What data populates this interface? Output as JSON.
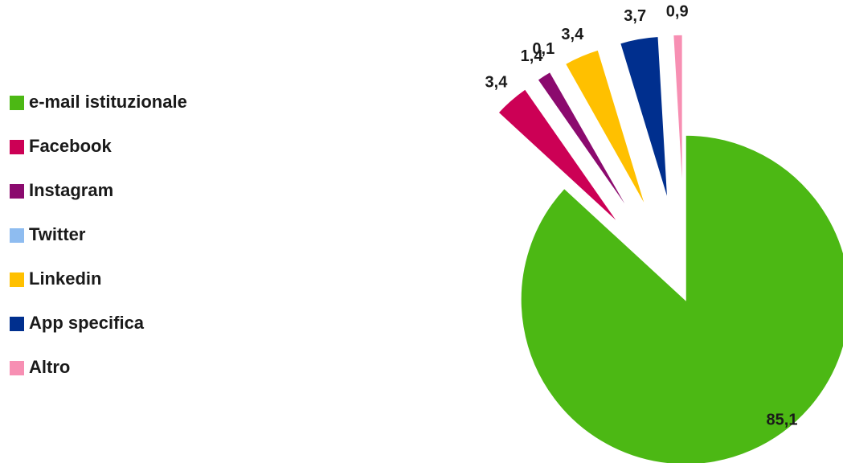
{
  "chart_data": {
    "type": "pie",
    "categories": [
      "e-mail istituzionale",
      "Facebook",
      "Instagram",
      "Twitter",
      "Linkedin",
      "App specifica",
      "Altro"
    ],
    "values": [
      85.1,
      3.4,
      1.4,
      0.1,
      3.4,
      3.7,
      0.9
    ],
    "value_labels": [
      "85,1",
      "3,4",
      "1,4",
      "0,1",
      "3,4",
      "3,7",
      "0,9"
    ],
    "colors": [
      "#4cb814",
      "#cc0055",
      "#8b0a6e",
      "#8ebcf0",
      "#ffc000",
      "#002f8e",
      "#f78fb3"
    ],
    "legend": "left"
  }
}
